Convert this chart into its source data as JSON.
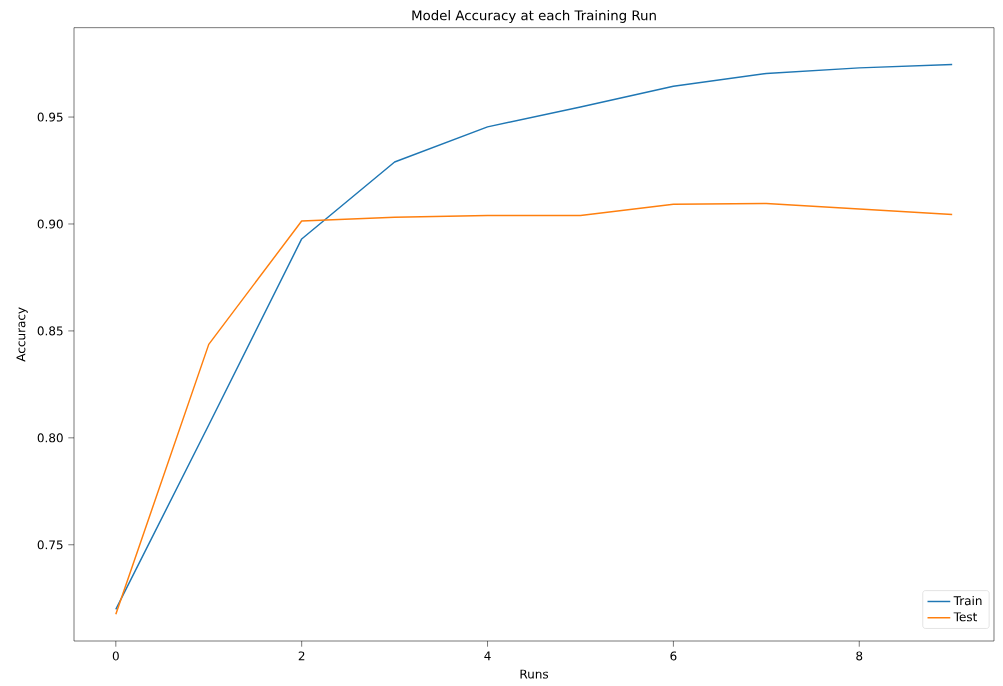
{
  "chart_data": {
    "type": "line",
    "title": "Model Accuracy at each Training Run",
    "xlabel": "Runs",
    "ylabel": "Accuracy",
    "x": [
      0,
      1,
      2,
      3,
      4,
      5,
      6,
      7,
      8,
      9
    ],
    "series": [
      {
        "name": "Train",
        "color": "#1f77b4",
        "values": [
          0.7198,
          0.806,
          0.893,
          0.929,
          0.9454,
          0.9547,
          0.9644,
          0.9704,
          0.973,
          0.9746
        ]
      },
      {
        "name": "Test",
        "color": "#ff7f0e",
        "values": [
          0.7175,
          0.8437,
          0.9014,
          0.9031,
          0.904,
          0.904,
          0.9092,
          0.9096,
          0.907,
          0.9044
        ]
      }
    ],
    "xlim": [
      -0.45,
      9.45
    ],
    "ylim": [
      0.705,
      0.9918
    ],
    "xticks": [
      0,
      2,
      4,
      6,
      8
    ],
    "yticks": [
      0.75,
      {
        "value": 0.8,
        "label": "0.80"
      },
      0.85,
      {
        "value": 0.9,
        "label": "0.90"
      },
      0.95
    ],
    "grid": false,
    "legend": "bottom right",
    "marker": "none",
    "line_style": "solid"
  }
}
